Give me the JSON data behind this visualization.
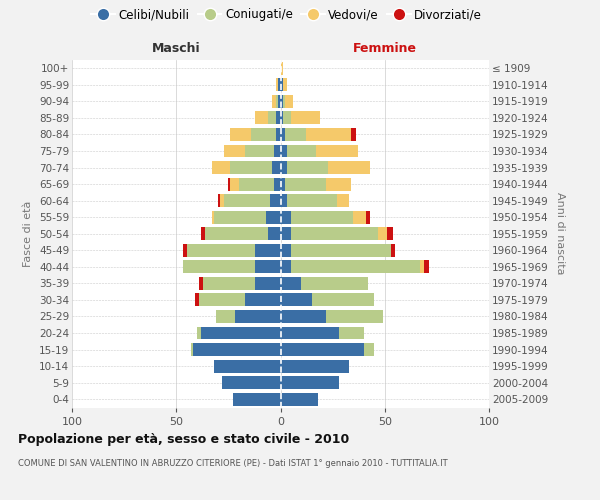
{
  "age_groups": [
    "100+",
    "95-99",
    "90-94",
    "85-89",
    "80-84",
    "75-79",
    "70-74",
    "65-69",
    "60-64",
    "55-59",
    "50-54",
    "45-49",
    "40-44",
    "35-39",
    "30-34",
    "25-29",
    "20-24",
    "15-19",
    "10-14",
    "5-9",
    "0-4"
  ],
  "birth_years": [
    "≤ 1909",
    "1910-1914",
    "1915-1919",
    "1920-1924",
    "1925-1929",
    "1930-1934",
    "1935-1939",
    "1940-1944",
    "1945-1949",
    "1950-1954",
    "1955-1959",
    "1960-1964",
    "1965-1969",
    "1970-1974",
    "1975-1979",
    "1980-1984",
    "1985-1989",
    "1990-1994",
    "1995-1999",
    "2000-2004",
    "2005-2009"
  ],
  "colors": {
    "single": "#3a6ea5",
    "married": "#b8cc8a",
    "widowed": "#f5c96a",
    "divorced": "#cc1111"
  },
  "males": {
    "single": [
      0,
      1,
      1,
      2,
      2,
      3,
      4,
      3,
      5,
      7,
      6,
      12,
      12,
      12,
      17,
      22,
      38,
      42,
      32,
      28,
      23
    ],
    "married": [
      0,
      0,
      1,
      4,
      12,
      14,
      20,
      17,
      22,
      25,
      30,
      33,
      35,
      25,
      22,
      9,
      2,
      1,
      0,
      0,
      0
    ],
    "widowed": [
      0,
      1,
      2,
      6,
      10,
      10,
      9,
      4,
      2,
      1,
      0,
      0,
      0,
      0,
      0,
      0,
      0,
      0,
      0,
      0,
      0
    ],
    "divorced": [
      0,
      0,
      0,
      0,
      0,
      0,
      0,
      1,
      1,
      0,
      2,
      2,
      0,
      2,
      2,
      0,
      0,
      0,
      0,
      0,
      0
    ]
  },
  "females": {
    "single": [
      0,
      1,
      1,
      1,
      2,
      3,
      3,
      2,
      3,
      5,
      5,
      5,
      5,
      10,
      15,
      22,
      28,
      40,
      33,
      28,
      18
    ],
    "married": [
      0,
      0,
      1,
      4,
      10,
      14,
      20,
      20,
      24,
      30,
      42,
      48,
      62,
      32,
      30,
      27,
      12,
      5,
      0,
      0,
      0
    ],
    "widowed": [
      1,
      2,
      4,
      14,
      22,
      20,
      20,
      12,
      6,
      6,
      4,
      0,
      2,
      0,
      0,
      0,
      0,
      0,
      0,
      0,
      0
    ],
    "divorced": [
      0,
      0,
      0,
      0,
      2,
      0,
      0,
      0,
      0,
      2,
      3,
      2,
      2,
      0,
      0,
      0,
      0,
      0,
      0,
      0,
      0
    ]
  },
  "xlim": 100,
  "title": "Popolazione per età, sesso e stato civile - 2010",
  "subtitle": "COMUNE DI SAN VALENTINO IN ABRUZZO CITERIORE (PE) - Dati ISTAT 1° gennaio 2010 - TUTTITALIA.IT",
  "xlabel_left": "Maschi",
  "xlabel_right": "Femmine",
  "ylabel_left": "Fasce di età",
  "ylabel_right": "Anni di nascita",
  "legend_labels": [
    "Celibi/Nubili",
    "Coniugati/e",
    "Vedovi/e",
    "Divorziati/e"
  ],
  "bg_color": "#f2f2f2",
  "plot_bg": "#ffffff",
  "bar_height": 0.78
}
